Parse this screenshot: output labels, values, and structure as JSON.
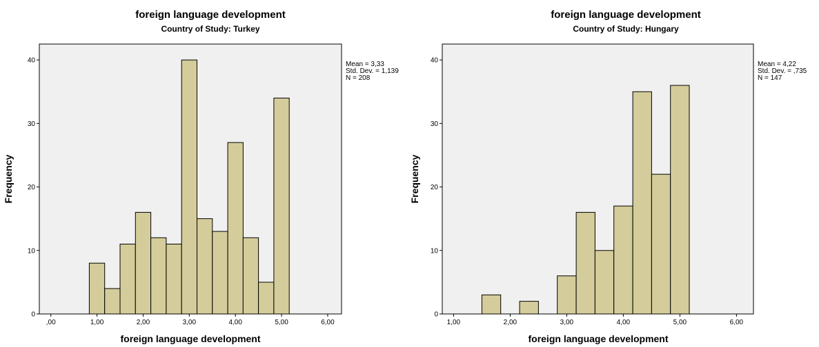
{
  "chart_data": [
    {
      "type": "bar",
      "title": "foreign language development",
      "subtitle": "Country of Study: Turkey",
      "xlabel": "foreign language development",
      "ylabel": "Frequency",
      "xticks": [
        ",00",
        "1,00",
        "2,00",
        "3,00",
        "4,00",
        "5,00",
        "6,00"
      ],
      "xtick_values": [
        0,
        1,
        2,
        3,
        4,
        5,
        6
      ],
      "yticks": [
        0,
        10,
        20,
        30,
        40
      ],
      "xlim": [
        -0.25,
        6.3
      ],
      "ylim": [
        0,
        42.5
      ],
      "bar_color": "#d4cc9a",
      "bins": [
        {
          "x0": 0.8333,
          "x1": 1.1667,
          "value": 8
        },
        {
          "x0": 1.1667,
          "x1": 1.5,
          "value": 4
        },
        {
          "x0": 1.5,
          "x1": 1.8333,
          "value": 11
        },
        {
          "x0": 1.8333,
          "x1": 2.1667,
          "value": 16
        },
        {
          "x0": 2.1667,
          "x1": 2.5,
          "value": 12
        },
        {
          "x0": 2.5,
          "x1": 2.8333,
          "value": 11
        },
        {
          "x0": 2.8333,
          "x1": 3.1667,
          "value": 40
        },
        {
          "x0": 3.1667,
          "x1": 3.5,
          "value": 15
        },
        {
          "x0": 3.5,
          "x1": 3.8333,
          "value": 13
        },
        {
          "x0": 3.8333,
          "x1": 4.1667,
          "value": 27
        },
        {
          "x0": 4.1667,
          "x1": 4.5,
          "value": 12
        },
        {
          "x0": 4.5,
          "x1": 4.8333,
          "value": 5
        },
        {
          "x0": 4.8333,
          "x1": 5.1667,
          "value": 34
        }
      ],
      "stats": [
        "Mean = 3,33",
        "Std. Dev. = 1,139",
        "N = 208"
      ]
    },
    {
      "type": "bar",
      "title": "foreign language development",
      "subtitle": "Country of Study: Hungary",
      "xlabel": "foreign language development",
      "ylabel": "Frequency",
      "xticks": [
        "1,00",
        "2,00",
        "3,00",
        "4,00",
        "5,00",
        "6,00"
      ],
      "xtick_values": [
        1,
        2,
        3,
        4,
        5,
        6
      ],
      "yticks": [
        0,
        10,
        20,
        30,
        40
      ],
      "xlim": [
        0.8,
        6.3
      ],
      "ylim": [
        0,
        42.5
      ],
      "bar_color": "#d4cc9a",
      "bins": [
        {
          "x0": 1.5,
          "x1": 1.8333,
          "value": 3
        },
        {
          "x0": 1.8333,
          "x1": 2.1667,
          "value": 0
        },
        {
          "x0": 2.1667,
          "x1": 2.5,
          "value": 2
        },
        {
          "x0": 2.5,
          "x1": 2.8333,
          "value": 0
        },
        {
          "x0": 2.8333,
          "x1": 3.1667,
          "value": 6
        },
        {
          "x0": 3.1667,
          "x1": 3.5,
          "value": 16
        },
        {
          "x0": 3.5,
          "x1": 3.8333,
          "value": 10
        },
        {
          "x0": 3.8333,
          "x1": 4.1667,
          "value": 17
        },
        {
          "x0": 4.1667,
          "x1": 4.5,
          "value": 35
        },
        {
          "x0": 4.5,
          "x1": 4.8333,
          "value": 22
        },
        {
          "x0": 4.8333,
          "x1": 5.1667,
          "value": 36
        }
      ],
      "stats": [
        "Mean = 4,22",
        "Std. Dev. = ,735",
        "N = 147"
      ]
    }
  ]
}
